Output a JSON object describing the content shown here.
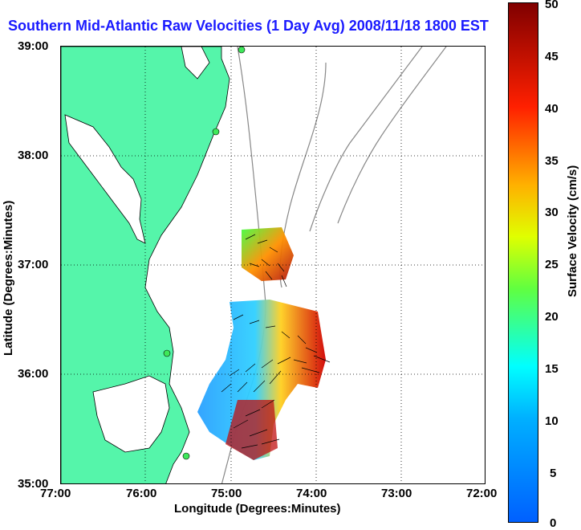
{
  "title": "Southern Mid-Atlantic Raw Velocities (1 Day Avg) 2008/11/18 1800 EST",
  "axes": {
    "xlabel": "Longitude (Degrees:Minutes)",
    "ylabel": "Latitude (Degrees:Minutes)",
    "xticks": [
      "77:00",
      "76:00",
      "75:00",
      "74:00",
      "73:00",
      "72:00"
    ],
    "yticks": [
      "39:00",
      "38:00",
      "37:00",
      "36:00",
      "35:00"
    ]
  },
  "colorbar": {
    "label": "Surface Velocity (cm/s)",
    "ticks": [
      "50",
      "45",
      "40",
      "35",
      "30",
      "25",
      "20",
      "15",
      "10",
      "5",
      "0"
    ],
    "range": [
      0,
      50
    ]
  },
  "colors": {
    "land": "#55f5aa",
    "water": "#ffffff",
    "title": "#1a1aff",
    "station": "#3ee85a",
    "bathymetry": "#888888"
  }
}
